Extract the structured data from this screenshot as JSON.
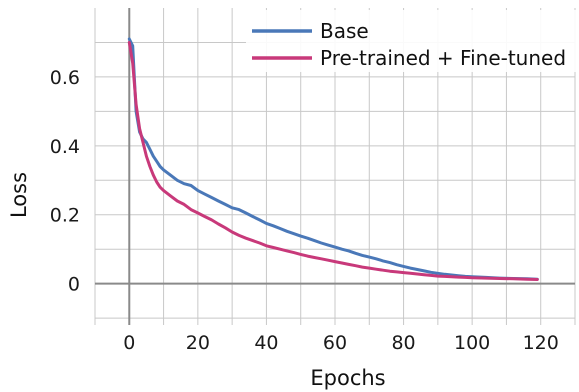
{
  "chart_data": {
    "type": "line",
    "title": "",
    "xlabel": "Epochs",
    "ylabel": "Loss",
    "xlim": [
      -10,
      130
    ],
    "ylim": [
      -0.12,
      0.8
    ],
    "x_ticks": [
      0,
      20,
      40,
      60,
      80,
      100,
      120
    ],
    "x_tick_labels": [
      "0",
      "20",
      "40",
      "60",
      "80",
      "100",
      "120"
    ],
    "y_ticks": [
      0,
      0.2,
      0.4,
      0.6
    ],
    "y_tick_labels": [
      "0",
      "0.2",
      "0.4",
      "0.6"
    ],
    "grid": true,
    "legend_position": "top-right",
    "colors": {
      "Base": "#4a78b8",
      "Pre-trained + Fine-tuned": "#c8397a",
      "grid": "#c8c8c8",
      "zero_axis": "#8a8a8a"
    },
    "series": [
      {
        "name": "Base",
        "x": [
          0,
          1,
          2,
          3,
          4,
          5,
          6,
          7,
          8,
          9,
          10,
          12,
          14,
          16,
          18,
          20,
          22,
          24,
          26,
          28,
          30,
          32,
          34,
          36,
          38,
          40,
          42,
          44,
          46,
          48,
          50,
          52,
          54,
          56,
          58,
          60,
          62,
          64,
          66,
          68,
          70,
          72,
          74,
          76,
          78,
          80,
          82,
          84,
          86,
          88,
          90,
          92,
          94,
          96,
          98,
          100,
          104,
          108,
          112,
          116,
          119
        ],
        "y": [
          0.71,
          0.69,
          0.5,
          0.44,
          0.42,
          0.41,
          0.39,
          0.37,
          0.355,
          0.34,
          0.33,
          0.315,
          0.3,
          0.29,
          0.285,
          0.27,
          0.26,
          0.25,
          0.24,
          0.23,
          0.22,
          0.215,
          0.205,
          0.195,
          0.185,
          0.175,
          0.168,
          0.16,
          0.152,
          0.145,
          0.138,
          0.132,
          0.125,
          0.118,
          0.112,
          0.106,
          0.1,
          0.095,
          0.088,
          0.082,
          0.077,
          0.072,
          0.066,
          0.061,
          0.055,
          0.05,
          0.045,
          0.041,
          0.037,
          0.033,
          0.03,
          0.027,
          0.025,
          0.023,
          0.021,
          0.02,
          0.018,
          0.016,
          0.015,
          0.014,
          0.013
        ]
      },
      {
        "name": "Pre-trained + Fine-tuned",
        "x": [
          0,
          1,
          2,
          3,
          4,
          5,
          6,
          7,
          8,
          9,
          10,
          12,
          14,
          16,
          18,
          20,
          22,
          24,
          26,
          28,
          30,
          32,
          34,
          36,
          38,
          40,
          42,
          44,
          46,
          48,
          50,
          52,
          54,
          56,
          58,
          60,
          62,
          64,
          66,
          68,
          70,
          72,
          74,
          76,
          78,
          80,
          82,
          84,
          86,
          88,
          90,
          92,
          94,
          96,
          98,
          100,
          104,
          108,
          112,
          116,
          119
        ],
        "y": [
          0.7,
          0.64,
          0.52,
          0.45,
          0.41,
          0.37,
          0.34,
          0.315,
          0.295,
          0.28,
          0.27,
          0.255,
          0.24,
          0.23,
          0.215,
          0.205,
          0.195,
          0.185,
          0.173,
          0.162,
          0.15,
          0.14,
          0.132,
          0.125,
          0.118,
          0.11,
          0.105,
          0.1,
          0.095,
          0.09,
          0.085,
          0.08,
          0.076,
          0.072,
          0.068,
          0.064,
          0.06,
          0.056,
          0.052,
          0.048,
          0.045,
          0.042,
          0.039,
          0.036,
          0.034,
          0.032,
          0.03,
          0.028,
          0.026,
          0.024,
          0.022,
          0.021,
          0.02,
          0.019,
          0.018,
          0.017,
          0.016,
          0.015,
          0.014,
          0.013,
          0.012
        ]
      }
    ]
  }
}
